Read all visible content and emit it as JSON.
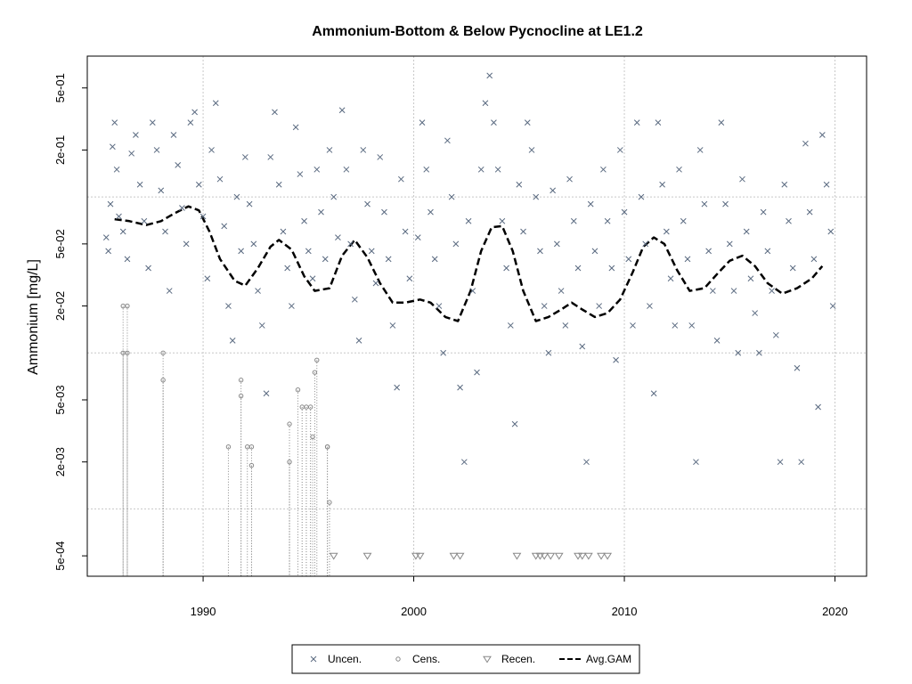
{
  "chart_data": {
    "type": "scatter",
    "title": "Ammonium-Bottom & Below Pycnocline at LE1.2",
    "xlabel": "",
    "ylabel": "Ammonium [mg/L]",
    "y_scale": "log",
    "xlim": [
      1984.5,
      2021.5
    ],
    "ylim": [
      0.00037,
      0.8
    ],
    "x_ticks": [
      1990,
      2000,
      2010,
      2020
    ],
    "x_tick_labels": [
      "1990",
      "2000",
      "2010",
      "2020"
    ],
    "y_ticks": [
      0.0005,
      0.002,
      0.005,
      0.02,
      0.05,
      0.2,
      0.5
    ],
    "y_tick_labels": [
      "5e-04",
      "2e-03",
      "5e-03",
      "2e-02",
      "5e-02",
      "2e-01",
      "5e-01"
    ],
    "grid_x": [
      1990,
      2000,
      2010,
      2020
    ],
    "grid_y": [
      0.001,
      0.01,
      0.1
    ],
    "legend": {
      "position": "bottom-center",
      "entries": [
        {
          "label": "Uncen.",
          "symbol": "x"
        },
        {
          "label": "Cens.",
          "symbol": "circle"
        },
        {
          "label": "Recen.",
          "symbol": "triangle-down"
        },
        {
          "label": "Avg.GAM",
          "symbol": "dashed-line"
        }
      ]
    },
    "colors": {
      "points": "#5a6a80",
      "censored": "#888888",
      "gam": "#000000",
      "grid": "#c8c8c8"
    },
    "series": [
      {
        "name": "Uncen.",
        "points": [
          [
            1985.4,
            0.055
          ],
          [
            1985.5,
            0.045
          ],
          [
            1985.6,
            0.09
          ],
          [
            1985.7,
            0.21
          ],
          [
            1985.8,
            0.3
          ],
          [
            1985.9,
            0.15
          ],
          [
            1986.0,
            0.075
          ],
          [
            1986.2,
            0.06
          ],
          [
            1986.4,
            0.04
          ],
          [
            1986.6,
            0.19
          ],
          [
            1986.8,
            0.25
          ],
          [
            1987.0,
            0.12
          ],
          [
            1987.2,
            0.07
          ],
          [
            1987.4,
            0.035
          ],
          [
            1987.6,
            0.3
          ],
          [
            1987.8,
            0.2
          ],
          [
            1988.0,
            0.11
          ],
          [
            1988.2,
            0.06
          ],
          [
            1988.4,
            0.025
          ],
          [
            1988.6,
            0.25
          ],
          [
            1988.8,
            0.16
          ],
          [
            1989.0,
            0.085
          ],
          [
            1989.2,
            0.05
          ],
          [
            1989.4,
            0.3
          ],
          [
            1989.6,
            0.35
          ],
          [
            1989.8,
            0.12
          ],
          [
            1990.0,
            0.075
          ],
          [
            1990.2,
            0.03
          ],
          [
            1990.4,
            0.2
          ],
          [
            1990.6,
            0.4
          ],
          [
            1990.8,
            0.13
          ],
          [
            1991.0,
            0.065
          ],
          [
            1991.2,
            0.02
          ],
          [
            1991.4,
            0.012
          ],
          [
            1991.6,
            0.1
          ],
          [
            1991.8,
            0.045
          ],
          [
            1992.0,
            0.18
          ],
          [
            1992.2,
            0.09
          ],
          [
            1992.4,
            0.05
          ],
          [
            1992.6,
            0.025
          ],
          [
            1992.8,
            0.015
          ],
          [
            1993.0,
            0.0055
          ],
          [
            1993.2,
            0.18
          ],
          [
            1993.4,
            0.35
          ],
          [
            1993.6,
            0.12
          ],
          [
            1993.8,
            0.06
          ],
          [
            1994.0,
            0.035
          ],
          [
            1994.2,
            0.02
          ],
          [
            1994.4,
            0.28
          ],
          [
            1994.6,
            0.14
          ],
          [
            1994.8,
            0.07
          ],
          [
            1995.0,
            0.045
          ],
          [
            1995.2,
            0.03
          ],
          [
            1995.4,
            0.15
          ],
          [
            1995.6,
            0.08
          ],
          [
            1995.8,
            0.04
          ],
          [
            1996.0,
            0.2
          ],
          [
            1996.2,
            0.1
          ],
          [
            1996.4,
            0.055
          ],
          [
            1996.6,
            0.36
          ],
          [
            1996.8,
            0.15
          ],
          [
            1997.0,
            0.05
          ],
          [
            1997.2,
            0.022
          ],
          [
            1997.4,
            0.012
          ],
          [
            1997.6,
            0.2
          ],
          [
            1997.8,
            0.09
          ],
          [
            1998.0,
            0.045
          ],
          [
            1998.2,
            0.028
          ],
          [
            1998.4,
            0.18
          ],
          [
            1998.6,
            0.08
          ],
          [
            1998.8,
            0.04
          ],
          [
            1999.0,
            0.015
          ],
          [
            1999.2,
            0.006
          ],
          [
            1999.4,
            0.13
          ],
          [
            1999.6,
            0.06
          ],
          [
            1999.8,
            0.03
          ],
          [
            2000.2,
            0.055
          ],
          [
            2000.4,
            0.3
          ],
          [
            2000.6,
            0.15
          ],
          [
            2000.8,
            0.08
          ],
          [
            2001.0,
            0.04
          ],
          [
            2001.2,
            0.02
          ],
          [
            2001.4,
            0.01
          ],
          [
            2001.6,
            0.23
          ],
          [
            2001.8,
            0.1
          ],
          [
            2002.0,
            0.05
          ],
          [
            2002.2,
            0.006
          ],
          [
            2002.4,
            0.002
          ],
          [
            2002.6,
            0.07
          ],
          [
            2002.8,
            0.025
          ],
          [
            2003.0,
            0.0075
          ],
          [
            2003.2,
            0.15
          ],
          [
            2003.4,
            0.4
          ],
          [
            2003.6,
            0.6
          ],
          [
            2003.8,
            0.3
          ],
          [
            2004.0,
            0.15
          ],
          [
            2004.2,
            0.07
          ],
          [
            2004.4,
            0.035
          ],
          [
            2004.6,
            0.015
          ],
          [
            2004.8,
            0.0035
          ],
          [
            2005.0,
            0.12
          ],
          [
            2005.2,
            0.06
          ],
          [
            2005.4,
            0.3
          ],
          [
            2005.6,
            0.2
          ],
          [
            2005.8,
            0.1
          ],
          [
            2006.0,
            0.045
          ],
          [
            2006.2,
            0.02
          ],
          [
            2006.4,
            0.01
          ],
          [
            2006.6,
            0.11
          ],
          [
            2006.8,
            0.05
          ],
          [
            2007.0,
            0.025
          ],
          [
            2007.2,
            0.015
          ],
          [
            2007.4,
            0.13
          ],
          [
            2007.6,
            0.07
          ],
          [
            2007.8,
            0.035
          ],
          [
            2008.0,
            0.011
          ],
          [
            2008.2,
            0.002
          ],
          [
            2008.4,
            0.09
          ],
          [
            2008.6,
            0.045
          ],
          [
            2008.8,
            0.02
          ],
          [
            2009.0,
            0.15
          ],
          [
            2009.2,
            0.07
          ],
          [
            2009.4,
            0.035
          ],
          [
            2009.6,
            0.009
          ],
          [
            2009.8,
            0.2
          ],
          [
            2010.0,
            0.08
          ],
          [
            2010.2,
            0.04
          ],
          [
            2010.4,
            0.015
          ],
          [
            2010.6,
            0.3
          ],
          [
            2010.8,
            0.1
          ],
          [
            2011.0,
            0.05
          ],
          [
            2011.2,
            0.02
          ],
          [
            2011.4,
            0.0055
          ],
          [
            2011.6,
            0.3
          ],
          [
            2011.8,
            0.12
          ],
          [
            2012.0,
            0.06
          ],
          [
            2012.2,
            0.03
          ],
          [
            2012.4,
            0.015
          ],
          [
            2012.6,
            0.15
          ],
          [
            2012.8,
            0.07
          ],
          [
            2013.0,
            0.04
          ],
          [
            2013.2,
            0.015
          ],
          [
            2013.4,
            0.002
          ],
          [
            2013.6,
            0.2
          ],
          [
            2013.8,
            0.09
          ],
          [
            2014.0,
            0.045
          ],
          [
            2014.2,
            0.025
          ],
          [
            2014.4,
            0.012
          ],
          [
            2014.6,
            0.3
          ],
          [
            2014.8,
            0.09
          ],
          [
            2015.0,
            0.05
          ],
          [
            2015.2,
            0.025
          ],
          [
            2015.4,
            0.01
          ],
          [
            2015.6,
            0.13
          ],
          [
            2015.8,
            0.06
          ],
          [
            2016.0,
            0.03
          ],
          [
            2016.2,
            0.018
          ],
          [
            2016.4,
            0.01
          ],
          [
            2016.6,
            0.08
          ],
          [
            2016.8,
            0.045
          ],
          [
            2017.0,
            0.025
          ],
          [
            2017.2,
            0.013
          ],
          [
            2017.4,
            0.002
          ],
          [
            2017.6,
            0.12
          ],
          [
            2017.8,
            0.07
          ],
          [
            2018.0,
            0.035
          ],
          [
            2018.2,
            0.008
          ],
          [
            2018.4,
            0.002
          ],
          [
            2018.6,
            0.22
          ],
          [
            2018.8,
            0.08
          ],
          [
            2019.0,
            0.04
          ],
          [
            2019.2,
            0.0045
          ],
          [
            2019.4,
            0.25
          ],
          [
            2019.6,
            0.12
          ],
          [
            2019.8,
            0.06
          ],
          [
            2019.9,
            0.02
          ]
        ]
      },
      {
        "name": "Cens.",
        "points": [
          [
            1986.2,
            0.02
          ],
          [
            1986.4,
            0.02
          ],
          [
            1986.2,
            0.01
          ],
          [
            1986.4,
            0.01
          ],
          [
            1988.1,
            0.01
          ],
          [
            1988.1,
            0.0067
          ],
          [
            1991.2,
            0.0025
          ],
          [
            1991.8,
            0.0067
          ],
          [
            1991.8,
            0.0053
          ],
          [
            1992.1,
            0.0025
          ],
          [
            1992.3,
            0.0025
          ],
          [
            1992.3,
            0.0019
          ],
          [
            1994.1,
            0.0035
          ],
          [
            1994.1,
            0.002
          ],
          [
            1994.5,
            0.0058
          ],
          [
            1994.7,
            0.0045
          ],
          [
            1994.9,
            0.0045
          ],
          [
            1995.1,
            0.0045
          ],
          [
            1995.2,
            0.0029
          ],
          [
            1995.3,
            0.0075
          ],
          [
            1995.4,
            0.009
          ],
          [
            1995.9,
            0.0025
          ],
          [
            1995.9,
            0.0025
          ],
          [
            1996.0,
            0.0011
          ]
        ]
      },
      {
        "name": "Recen.",
        "points": [
          [
            1996.2,
            0.0005
          ],
          [
            1997.8,
            0.0005
          ],
          [
            2000.1,
            0.0005
          ],
          [
            2000.3,
            0.0005
          ],
          [
            2001.9,
            0.0005
          ],
          [
            2002.2,
            0.0005
          ],
          [
            2004.9,
            0.0005
          ],
          [
            2005.8,
            0.0005
          ],
          [
            2006.0,
            0.0005
          ],
          [
            2006.2,
            0.0005
          ],
          [
            2006.5,
            0.0005
          ],
          [
            2006.9,
            0.0005
          ],
          [
            2007.8,
            0.0005
          ],
          [
            2008.0,
            0.0005
          ],
          [
            2008.3,
            0.0005
          ],
          [
            2008.9,
            0.0005
          ],
          [
            2009.2,
            0.0005
          ]
        ]
      },
      {
        "name": "Avg.GAM",
        "points": [
          [
            1985.8,
            0.072
          ],
          [
            1986.5,
            0.07
          ],
          [
            1987.3,
            0.066
          ],
          [
            1988.0,
            0.07
          ],
          [
            1988.6,
            0.078
          ],
          [
            1989.3,
            0.087
          ],
          [
            1989.8,
            0.082
          ],
          [
            1990.3,
            0.06
          ],
          [
            1990.8,
            0.04
          ],
          [
            1991.5,
            0.029
          ],
          [
            1992.0,
            0.027
          ],
          [
            1992.6,
            0.035
          ],
          [
            1993.2,
            0.048
          ],
          [
            1993.6,
            0.053
          ],
          [
            1994.2,
            0.046
          ],
          [
            1994.8,
            0.031
          ],
          [
            1995.3,
            0.025
          ],
          [
            1996.0,
            0.026
          ],
          [
            1996.6,
            0.042
          ],
          [
            1997.2,
            0.053
          ],
          [
            1997.8,
            0.041
          ],
          [
            1998.4,
            0.028
          ],
          [
            1999.0,
            0.021
          ],
          [
            1999.6,
            0.021
          ],
          [
            2000.3,
            0.022
          ],
          [
            2000.8,
            0.021
          ],
          [
            2001.5,
            0.017
          ],
          [
            2002.1,
            0.016
          ],
          [
            2002.7,
            0.025
          ],
          [
            2003.2,
            0.045
          ],
          [
            2003.7,
            0.064
          ],
          [
            2004.2,
            0.065
          ],
          [
            2004.7,
            0.045
          ],
          [
            2005.2,
            0.025
          ],
          [
            2005.8,
            0.016
          ],
          [
            2006.4,
            0.017
          ],
          [
            2007.0,
            0.019
          ],
          [
            2007.5,
            0.021
          ],
          [
            2008.0,
            0.019
          ],
          [
            2008.6,
            0.017
          ],
          [
            2009.2,
            0.018
          ],
          [
            2009.8,
            0.022
          ],
          [
            2010.4,
            0.033
          ],
          [
            2010.9,
            0.048
          ],
          [
            2011.4,
            0.055
          ],
          [
            2011.9,
            0.05
          ],
          [
            2012.5,
            0.034
          ],
          [
            2013.1,
            0.025
          ],
          [
            2013.8,
            0.026
          ],
          [
            2014.4,
            0.032
          ],
          [
            2015.0,
            0.039
          ],
          [
            2015.6,
            0.042
          ],
          [
            2016.2,
            0.036
          ],
          [
            2016.8,
            0.028
          ],
          [
            2017.5,
            0.024
          ],
          [
            2018.2,
            0.026
          ],
          [
            2018.9,
            0.03
          ],
          [
            2019.4,
            0.036
          ]
        ]
      }
    ]
  }
}
